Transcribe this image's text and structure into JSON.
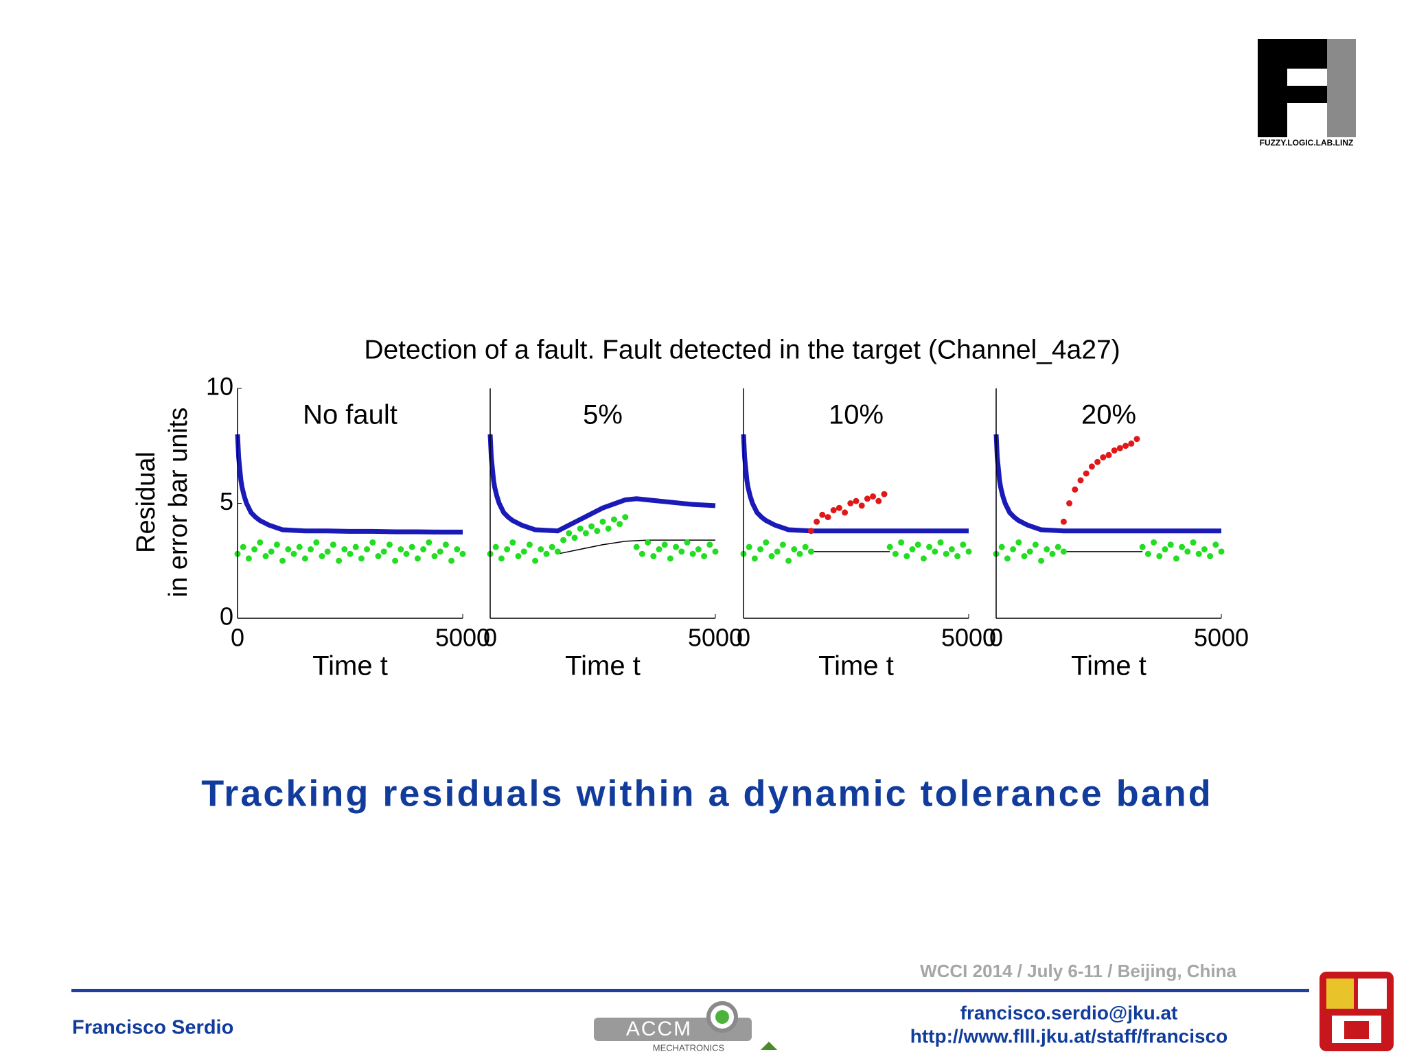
{
  "logo": {
    "text": "FUZZY.LOGIC.LAB.LINZ"
  },
  "figure": {
    "title": "Detection of a fault. Fault detected in the target (Channel_4a27)",
    "ylabel": [
      "Residual",
      "in error bar units"
    ]
  },
  "chart_data": [
    {
      "type": "scatter",
      "title": "No fault",
      "xlabel": "Time t",
      "xlim": [
        0,
        5000
      ],
      "xticks": [
        0,
        5000
      ],
      "ylim": [
        0,
        10
      ],
      "yticks": [
        0,
        5,
        10
      ],
      "series": [
        {
          "color": "#1a1ab8",
          "linestyle": "solid",
          "x": [
            0,
            25,
            50,
            75,
            100,
            150,
            200,
            300,
            400,
            500,
            700,
            1000,
            1500,
            2000,
            2500,
            3000,
            3500,
            4000,
            4500,
            5000
          ],
          "values": [
            8,
            7,
            6.5,
            6,
            5.7,
            5.3,
            5,
            4.6,
            4.4,
            4.25,
            4.05,
            3.85,
            3.8,
            3.8,
            3.78,
            3.78,
            3.76,
            3.76,
            3.75,
            3.75
          ]
        },
        {
          "color": "#22dd22",
          "marker": "dot",
          "x": [
            0,
            125,
            250,
            375,
            500,
            625,
            750,
            875,
            1000,
            1125,
            1250,
            1375,
            1500,
            1625,
            1750,
            1875,
            2000,
            2125,
            2250,
            2375,
            2500,
            2625,
            2750,
            2875,
            3000,
            3125,
            3250,
            3375,
            3500,
            3625,
            3750,
            3875,
            4000,
            4125,
            4250,
            4375,
            4500,
            4625,
            4750,
            4875,
            5000
          ],
          "values": [
            2.8,
            3.1,
            2.6,
            3.0,
            3.3,
            2.7,
            2.9,
            3.2,
            2.5,
            3.0,
            2.8,
            3.1,
            2.6,
            3.0,
            3.3,
            2.7,
            2.9,
            3.2,
            2.5,
            3.0,
            2.8,
            3.1,
            2.6,
            3.0,
            3.3,
            2.7,
            2.9,
            3.2,
            2.5,
            3.0,
            2.8,
            3.1,
            2.6,
            3.0,
            3.3,
            2.7,
            2.9,
            3.2,
            2.5,
            3.0,
            2.8
          ]
        }
      ]
    },
    {
      "type": "scatter",
      "title": "5%",
      "xlabel": "Time t",
      "xlim": [
        0,
        5000
      ],
      "xticks": [
        0,
        5000
      ],
      "ylim": [
        0,
        10
      ],
      "series": [
        {
          "color": "#000000",
          "linestyle": "solid",
          "x": [
            1500,
            2000,
            2500,
            3000,
            3500,
            5000
          ],
          "values": [
            2.8,
            3.0,
            3.2,
            3.35,
            3.4,
            3.4
          ]
        },
        {
          "color": "#1a1ab8",
          "linestyle": "solid",
          "x": [
            0,
            25,
            50,
            75,
            100,
            150,
            200,
            300,
            400,
            500,
            700,
            1000,
            1500,
            2000,
            2500,
            3000,
            3250,
            3500,
            4000,
            4500,
            5000
          ],
          "values": [
            8,
            7,
            6.5,
            6,
            5.7,
            5.3,
            5,
            4.6,
            4.4,
            4.25,
            4.05,
            3.85,
            3.8,
            4.3,
            4.8,
            5.15,
            5.2,
            5.15,
            5.05,
            4.95,
            4.9
          ]
        },
        {
          "color": "#22dd22",
          "marker": "dot",
          "x": [
            0,
            125,
            250,
            375,
            500,
            625,
            750,
            875,
            1000,
            1125,
            1250,
            1375,
            1500,
            1625,
            1750,
            1875,
            2000,
            2125,
            2250,
            2375,
            2500,
            2625,
            2750,
            2875,
            3000,
            3250,
            3375,
            3500,
            3625,
            3750,
            3875,
            4000,
            4125,
            4250,
            4375,
            4500,
            4625,
            4750,
            4875,
            5000
          ],
          "values": [
            2.8,
            3.1,
            2.6,
            3.0,
            3.3,
            2.7,
            2.9,
            3.2,
            2.5,
            3.0,
            2.8,
            3.1,
            2.9,
            3.4,
            3.7,
            3.5,
            3.9,
            3.7,
            4.0,
            3.8,
            4.2,
            3.9,
            4.3,
            4.1,
            4.4,
            3.1,
            2.8,
            3.3,
            2.7,
            3.0,
            3.2,
            2.6,
            3.1,
            2.9,
            3.3,
            2.8,
            3.0,
            2.7,
            3.2,
            2.9
          ]
        }
      ]
    },
    {
      "type": "scatter",
      "title": "10%",
      "xlabel": "Time t",
      "xlim": [
        0,
        5000
      ],
      "xticks": [
        0,
        5000
      ],
      "ylim": [
        0,
        10
      ],
      "series": [
        {
          "color": "#000000",
          "linestyle": "solid",
          "x": [
            1500,
            3250
          ],
          "values": [
            2.9,
            2.9
          ]
        },
        {
          "color": "#1a1ab8",
          "linestyle": "solid",
          "x": [
            0,
            25,
            50,
            75,
            100,
            150,
            200,
            300,
            400,
            500,
            700,
            1000,
            1500,
            2000,
            2500,
            3000,
            3500,
            4000,
            4500,
            5000
          ],
          "values": [
            8,
            7,
            6.5,
            6,
            5.7,
            5.3,
            5,
            4.6,
            4.4,
            4.25,
            4.05,
            3.85,
            3.8,
            3.8,
            3.8,
            3.8,
            3.8,
            3.8,
            3.8,
            3.8
          ]
        },
        {
          "color": "#22dd22",
          "marker": "dot",
          "x": [
            0,
            125,
            250,
            375,
            500,
            625,
            750,
            875,
            1000,
            1125,
            1250,
            1375,
            1500,
            3250,
            3375,
            3500,
            3625,
            3750,
            3875,
            4000,
            4125,
            4250,
            4375,
            4500,
            4625,
            4750,
            4875,
            5000
          ],
          "values": [
            2.8,
            3.1,
            2.6,
            3.0,
            3.3,
            2.7,
            2.9,
            3.2,
            2.5,
            3.0,
            2.8,
            3.1,
            2.9,
            3.1,
            2.8,
            3.3,
            2.7,
            3.0,
            3.2,
            2.6,
            3.1,
            2.9,
            3.3,
            2.8,
            3.0,
            2.7,
            3.2,
            2.9
          ]
        },
        {
          "color": "#e01818",
          "marker": "dot",
          "x": [
            1500,
            1625,
            1750,
            1875,
            2000,
            2125,
            2250,
            2375,
            2500,
            2625,
            2750,
            2875,
            3000,
            3125
          ],
          "values": [
            3.8,
            4.2,
            4.5,
            4.4,
            4.7,
            4.8,
            4.6,
            5.0,
            5.1,
            4.9,
            5.2,
            5.3,
            5.1,
            5.4
          ]
        }
      ]
    },
    {
      "type": "scatter",
      "title": "20%",
      "xlabel": "Time t",
      "xlim": [
        0,
        5000
      ],
      "xticks": [
        0,
        5000
      ],
      "ylim": [
        0,
        10
      ],
      "series": [
        {
          "color": "#000000",
          "linestyle": "solid",
          "x": [
            1500,
            3250
          ],
          "values": [
            2.9,
            2.9
          ]
        },
        {
          "color": "#1a1ab8",
          "linestyle": "solid",
          "x": [
            0,
            25,
            50,
            75,
            100,
            150,
            200,
            300,
            400,
            500,
            700,
            1000,
            1500,
            2000,
            2500,
            3000,
            3500,
            4000,
            4500,
            5000
          ],
          "values": [
            8,
            7,
            6.5,
            6,
            5.7,
            5.3,
            5,
            4.6,
            4.4,
            4.25,
            4.05,
            3.85,
            3.8,
            3.8,
            3.8,
            3.8,
            3.8,
            3.8,
            3.8,
            3.8
          ]
        },
        {
          "color": "#22dd22",
          "marker": "dot",
          "x": [
            0,
            125,
            250,
            375,
            500,
            625,
            750,
            875,
            1000,
            1125,
            1250,
            1375,
            1500,
            3250,
            3375,
            3500,
            3625,
            3750,
            3875,
            4000,
            4125,
            4250,
            4375,
            4500,
            4625,
            4750,
            4875,
            5000
          ],
          "values": [
            2.8,
            3.1,
            2.6,
            3.0,
            3.3,
            2.7,
            2.9,
            3.2,
            2.5,
            3.0,
            2.8,
            3.1,
            2.9,
            3.1,
            2.8,
            3.3,
            2.7,
            3.0,
            3.2,
            2.6,
            3.1,
            2.9,
            3.3,
            2.8,
            3.0,
            2.7,
            3.2,
            2.9
          ]
        },
        {
          "color": "#e01818",
          "marker": "dot",
          "x": [
            1500,
            1625,
            1750,
            1875,
            2000,
            2125,
            2250,
            2375,
            2500,
            2625,
            2750,
            2875,
            3000,
            3125
          ],
          "values": [
            4.2,
            5.0,
            5.6,
            6.0,
            6.3,
            6.6,
            6.8,
            7.0,
            7.1,
            7.3,
            7.4,
            7.5,
            7.6,
            7.8
          ]
        }
      ]
    }
  ],
  "headline": "Tracking residuals within a dynamic tolerance band",
  "footer": {
    "event": "WCCI 2014 / July 6-11 / Beijing, China",
    "author": "Francisco Serdio",
    "email": "francisco.serdio@jku.at",
    "url": "http://www.flll.jku.at/staff/francisco",
    "partner": {
      "name": "ACCM",
      "subtitle": "MECHATRONICS"
    }
  }
}
